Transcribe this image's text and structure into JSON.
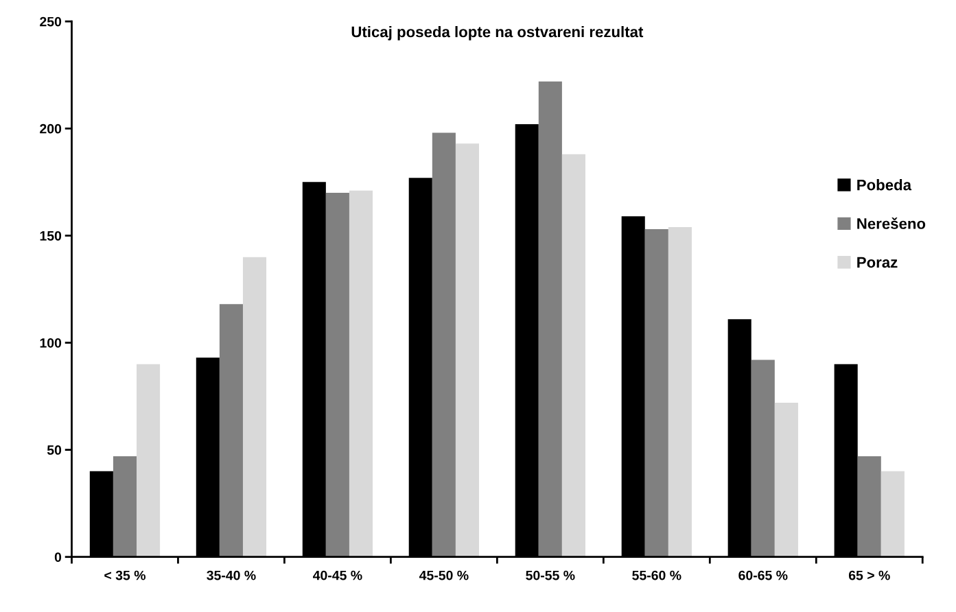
{
  "chart_data": {
    "type": "bar",
    "title": "Uticaj poseda lopte na ostvareni rezultat",
    "categories": [
      "< 35 %",
      "35-40 %",
      "40-45 %",
      "45-50 %",
      "50-55 %",
      "55-60 %",
      "60-65 %",
      "65 > %"
    ],
    "series": [
      {
        "name": "Pobeda",
        "color": "#000000",
        "values": [
          40,
          93,
          175,
          177,
          202,
          159,
          111,
          90
        ]
      },
      {
        "name": "Nerešeno",
        "color": "#808080",
        "values": [
          47,
          118,
          170,
          198,
          222,
          153,
          92,
          47
        ]
      },
      {
        "name": "Poraz",
        "color": "#d9d9d9",
        "values": [
          90,
          140,
          171,
          193,
          188,
          154,
          72,
          40
        ]
      }
    ],
    "ylim": [
      0,
      250
    ],
    "yticks": [
      0,
      50,
      100,
      150,
      200,
      250
    ],
    "grid": false,
    "legend": "right"
  }
}
